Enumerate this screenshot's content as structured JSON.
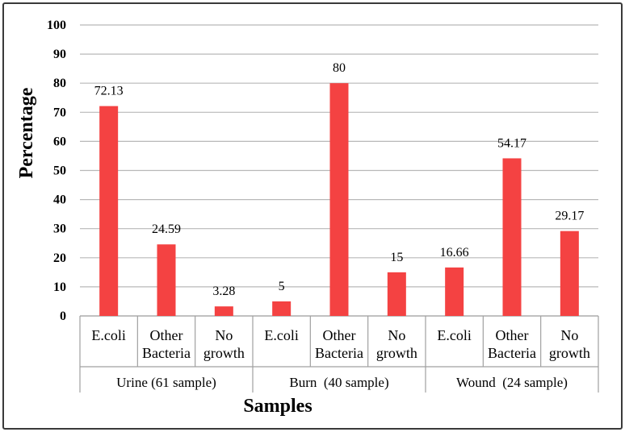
{
  "chart_data": {
    "type": "bar",
    "ylabel": "Percentage",
    "xlabel": "Samples",
    "ylim": [
      0,
      100
    ],
    "yticks": [
      "0",
      "10",
      "20",
      "30",
      "40",
      "50",
      "60",
      "70",
      "80",
      "90",
      "100"
    ],
    "grid": true,
    "bar_color": "#f44242",
    "groups": [
      {
        "label": "Urine (61 sample)",
        "categories": [
          {
            "label": [
              "E.coli"
            ],
            "value": 72.13,
            "value_label": "72.13"
          },
          {
            "label": [
              "Other",
              "Bacteria"
            ],
            "value": 24.59,
            "value_label": "24.59"
          },
          {
            "label": [
              "No",
              "growth"
            ],
            "value": 3.28,
            "value_label": "3.28"
          }
        ]
      },
      {
        "label": "Burn  (40 sample)",
        "categories": [
          {
            "label": [
              "E.coli"
            ],
            "value": 5,
            "value_label": "5"
          },
          {
            "label": [
              "Other",
              "Bacteria"
            ],
            "value": 80,
            "value_label": "80"
          },
          {
            "label": [
              "No",
              "growth"
            ],
            "value": 15,
            "value_label": "15"
          }
        ]
      },
      {
        "label": "Wound  (24 sample)",
        "categories": [
          {
            "label": [
              "E.coli"
            ],
            "value": 16.66,
            "value_label": "16.66"
          },
          {
            "label": [
              "Other",
              "Bacteria"
            ],
            "value": 54.17,
            "value_label": "54.17"
          },
          {
            "label": [
              "No",
              "growth"
            ],
            "value": 29.17,
            "value_label": "29.17"
          }
        ]
      }
    ]
  }
}
